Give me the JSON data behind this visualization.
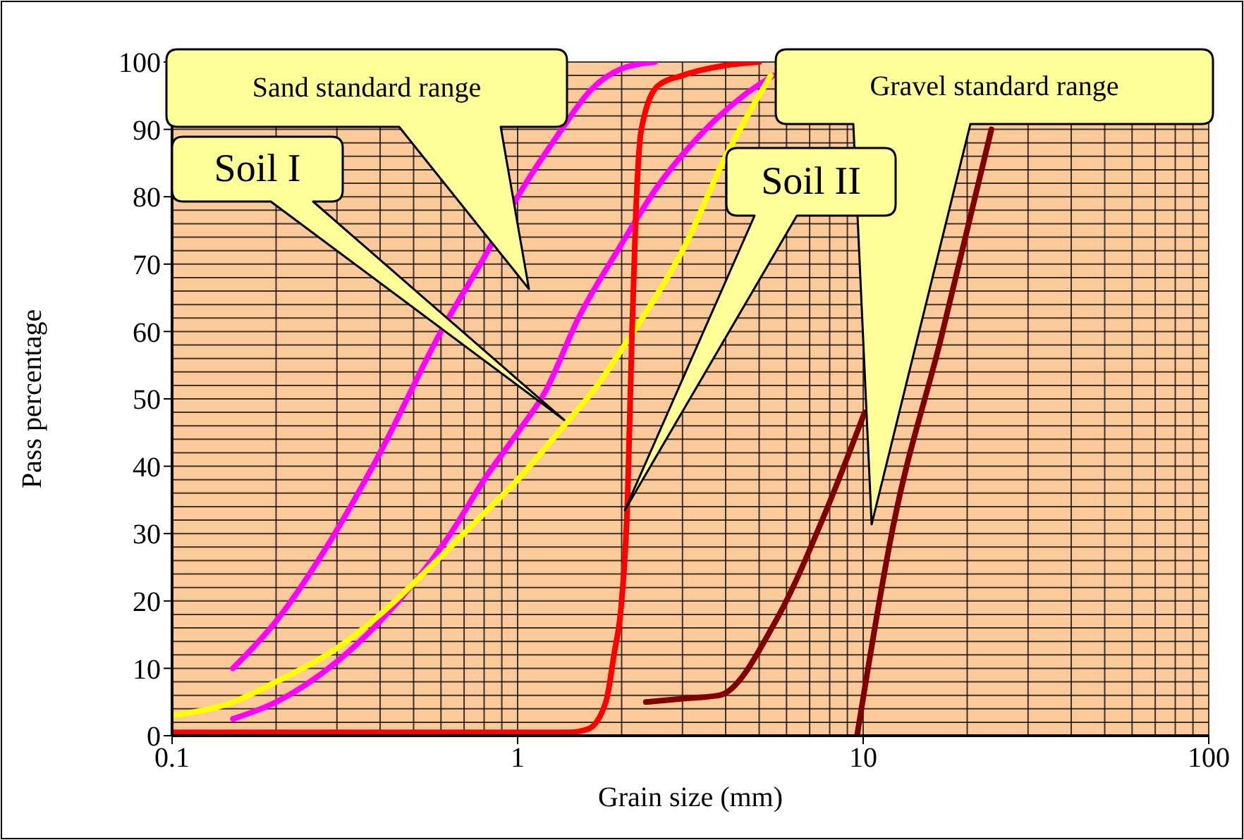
{
  "chart_data": {
    "type": "line",
    "xlabel": "Grain size (mm)",
    "ylabel": "Pass percentage",
    "log": "x",
    "xlim": [
      0.1,
      100
    ],
    "xticks": [
      0.1,
      1,
      10,
      100
    ],
    "ylim": [
      0,
      100
    ],
    "yticks": [
      0,
      10,
      20,
      30,
      40,
      50,
      60,
      70,
      80,
      90,
      100
    ],
    "grid": true,
    "marker": "none",
    "line_style": "solid",
    "series": [
      {
        "color": "#ff00ff",
        "x": [
          0.15,
          0.2,
          0.28,
          0.4,
          0.6,
          0.8,
          1.0,
          1.3,
          1.64,
          2.0,
          2.5
        ],
        "values": [
          10,
          17,
          28,
          42,
          60,
          71,
          80,
          89,
          96,
          99,
          100
        ]
      },
      {
        "color": "#ff00ff",
        "x": [
          0.15,
          0.2,
          0.3,
          0.4,
          0.64,
          0.8,
          1.0,
          1.2,
          1.5,
          2.0,
          2.5,
          3.5,
          4.5,
          5.5
        ],
        "values": [
          2.5,
          5,
          11,
          17,
          30,
          38,
          45,
          51,
          62,
          73,
          81,
          90,
          95,
          98
        ]
      },
      {
        "color": "#ffff00",
        "x": [
          0.1,
          0.15,
          0.2,
          0.3,
          0.4,
          0.57,
          0.8,
          1.0,
          1.36,
          1.7,
          2.04,
          2.5,
          3.0,
          4.0,
          5.4
        ],
        "values": [
          3,
          5,
          8,
          13,
          18,
          25.5,
          33,
          38,
          46,
          52,
          58,
          65,
          72,
          86,
          98
        ]
      },
      {
        "color": "#ff0000",
        "x": [
          0.1,
          1.4,
          1.6,
          1.8,
          1.9,
          2.0,
          2.08,
          2.14,
          2.2,
          2.28,
          2.55,
          3.0,
          4.0,
          5.0
        ],
        "values": [
          0.5,
          0.5,
          1,
          5,
          12,
          20,
          35,
          59,
          78,
          90,
          96.5,
          98,
          99.5,
          100
        ]
      },
      {
        "color": "#800000",
        "x": [
          2.35,
          3.0,
          3.84,
          5.58,
          7.9,
          10.1
        ],
        "values": [
          5,
          5.5,
          6,
          17,
          34,
          48
        ]
      },
      {
        "color": "#800000",
        "x": [
          9.6,
          12.2,
          16.8,
          23.5
        ],
        "values": [
          0,
          31,
          59,
          90
        ]
      }
    ],
    "annotations": [
      "Sand standard range",
      "Soil I",
      "Soil II",
      "Gravel standard range"
    ]
  }
}
